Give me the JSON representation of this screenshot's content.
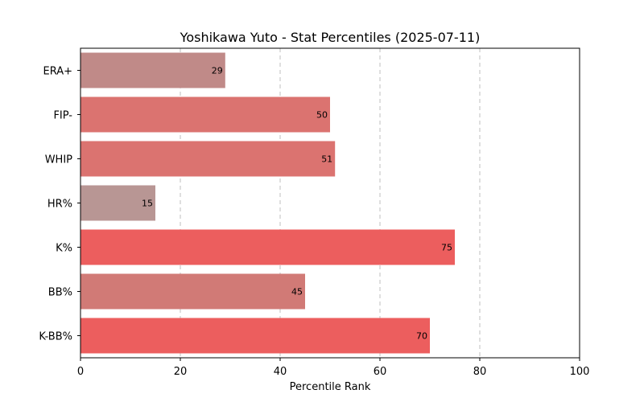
{
  "chart_data": {
    "type": "bar",
    "orientation": "horizontal",
    "title": "Yoshikawa Yuto - Stat Percentiles (2025-07-11)",
    "xlabel": "Percentile Rank",
    "ylabel": "",
    "xlim": [
      0,
      100
    ],
    "xticks": [
      0,
      20,
      40,
      60,
      80,
      100
    ],
    "grid": "x-dashed",
    "categories": [
      "ERA+",
      "FIP-",
      "WHIP",
      "HR%",
      "K%",
      "BB%",
      "K-BB%"
    ],
    "values": [
      29,
      50,
      51,
      15,
      75,
      45,
      70
    ],
    "colors": [
      "#c08a88",
      "#db7370",
      "#db7370",
      "#b89694",
      "#ec5e5e",
      "#d17a76",
      "#ec5e5e"
    ]
  }
}
